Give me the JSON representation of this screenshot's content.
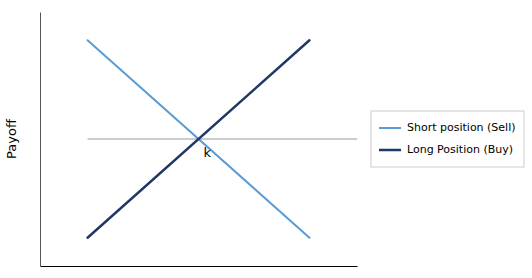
{
  "chart_data": {
    "type": "line",
    "ylabel": "Payoff",
    "x": [
      1.5,
      8.5
    ],
    "series": [
      {
        "name": "Short position (Sell)",
        "color": "#5b9bd5",
        "values": [
          3.5,
          -3.5
        ]
      },
      {
        "name": "Long Position (Buy)",
        "color": "#1f3864",
        "values": [
          -3.5,
          3.5
        ]
      }
    ],
    "reference_line": {
      "x": [
        1.5,
        10
      ],
      "y": [
        0,
        0
      ],
      "color": "#999999"
    },
    "annotations": [
      {
        "text": "k",
        "x": 5,
        "y": 0
      }
    ],
    "xlim": [
      0,
      10
    ],
    "ylim": [
      -4.5,
      4.5
    ],
    "tick_labels": false,
    "grid": false,
    "legend": "right"
  }
}
